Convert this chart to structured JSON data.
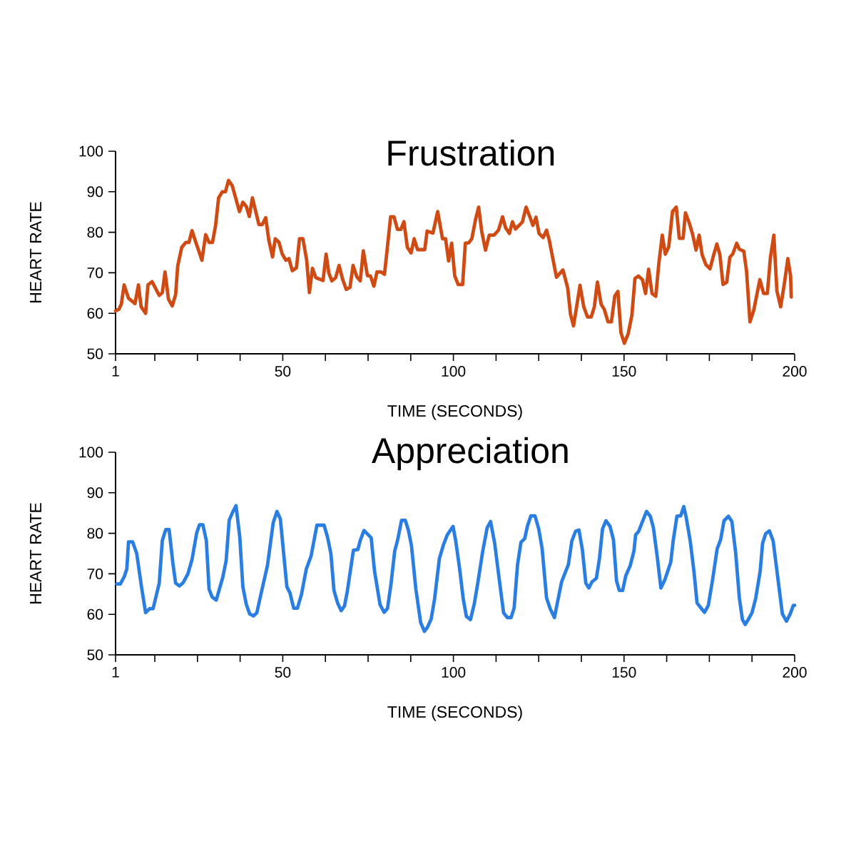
{
  "chart_data": [
    {
      "type": "line",
      "title": "Frustration",
      "xlabel": "TIME (SECONDS)",
      "ylabel": "HEART RATE",
      "color": "#d04a14",
      "xlim": [
        1,
        200
      ],
      "ylim": [
        50,
        100
      ],
      "xticks": [
        1,
        {
          "value": 12.5,
          "label": null
        },
        {
          "value": 25,
          "label": null
        },
        {
          "value": 37.5,
          "label": null
        },
        50,
        {
          "value": 62.5,
          "label": null
        },
        {
          "value": 75,
          "label": null
        },
        {
          "value": 87.5,
          "label": null
        },
        100,
        {
          "value": 112.5,
          "label": null
        },
        {
          "value": 125,
          "label": null
        },
        {
          "value": 137.5,
          "label": null
        },
        150,
        {
          "value": 162.5,
          "label": null
        },
        {
          "value": 175,
          "label": null
        },
        {
          "value": 187.5,
          "label": null
        },
        200
      ],
      "yticks": [
        50,
        60,
        70,
        80,
        90,
        100
      ],
      "x": [
        1,
        2,
        2.7,
        3.5,
        4.8,
        6.7,
        7.7,
        8.5,
        9.8,
        10.5,
        11.7,
        13.8,
        14.7,
        15.5,
        16.5,
        17.6,
        18.6,
        19.2,
        20.4,
        21.6,
        22.5,
        23.4,
        24.3,
        26.3,
        27.4,
        28.4,
        29.4,
        30.3,
        31.2,
        32.3,
        33.2,
        34.1,
        35.2,
        37.3,
        38.3,
        39.3,
        40.2,
        41.1,
        43,
        44,
        45,
        45.9,
        47,
        47.8,
        48.9,
        49.8,
        50.9,
        51.8,
        52.8,
        54,
        54.9,
        55.9,
        57,
        57.8,
        58.7,
        59.7,
        61.8,
        62.7,
        63.5,
        64.4,
        65.5,
        66.5,
        67.5,
        68.6,
        69.7,
        70.6,
        71.7,
        72.7,
        73.6,
        74.8,
        75.7,
        76.7,
        77.6,
        78.8,
        79.8,
        80.5,
        81.6,
        82.6,
        83.6,
        84.6,
        85.5,
        86.5,
        87.6,
        88.5,
        89.5,
        91.6,
        92.3,
        94,
        95.4,
        96.8,
        97.7,
        98.6,
        99.5,
        100.4,
        101.4,
        102.7,
        103.5,
        104.5,
        105.4,
        106.5,
        107.4,
        108.3,
        109.4,
        110.5,
        111.9,
        113.2,
        114.4,
        115.3,
        116.4,
        117.3,
        118.2,
        120.2,
        121.3,
        122.4,
        123.3,
        124.2,
        125.1,
        126.3,
        127.3,
        128.1,
        130.2,
        132.1,
        133.5,
        134.3,
        135.2,
        136.1,
        137.1,
        138.2,
        139.3,
        140.4,
        141.3,
        142.2,
        143.3,
        144.2,
        145.3,
        146.3,
        147.3,
        148.2,
        149.1,
        150.1,
        151.2,
        152.3,
        153.2,
        154.2,
        155.4,
        156.3,
        157.2,
        158.2,
        159.3,
        160.2,
        161.2,
        162.1,
        163.1,
        164.2,
        165.3,
        166.2,
        167.3,
        168,
        169.1,
        170.1,
        171.1,
        172,
        172.9,
        174,
        175.2,
        176.2,
        177.2,
        178.1,
        179,
        180.1,
        181,
        181.9,
        183,
        183.8,
        185.1,
        185.9,
        186.9,
        188,
        189.8,
        190.9,
        192,
        192.9,
        193.9,
        194.8,
        195.9,
        197,
        198,
        198.8,
        199
      ],
      "values": [
        60.6,
        61,
        62.3,
        67,
        63.7,
        62.4,
        67,
        61.6,
        60,
        67,
        67.8,
        64.4,
        65.1,
        70.2,
        63.5,
        61.8,
        64.6,
        71.6,
        76.3,
        77.5,
        77.5,
        80.4,
        78.1,
        73.1,
        79.4,
        77.5,
        77.5,
        81.6,
        88.5,
        90,
        90,
        92.8,
        91.5,
        85.1,
        87.4,
        86.4,
        83.9,
        88.5,
        81.9,
        81.9,
        83.6,
        78.1,
        73.9,
        78.4,
        77.5,
        74.7,
        73.1,
        73.5,
        70.5,
        71.2,
        78.4,
        78.4,
        73.1,
        65.1,
        71.1,
        68.8,
        68.1,
        74.6,
        69.9,
        68,
        68.8,
        71.8,
        68.5,
        65.9,
        66.4,
        71.8,
        69,
        68,
        75.4,
        69.3,
        69.2,
        66.7,
        70.2,
        70.2,
        69.6,
        75.1,
        83.8,
        83.8,
        80.7,
        80.7,
        82.6,
        76.3,
        74.9,
        78.4,
        75.7,
        75.7,
        80.3,
        79.8,
        85.1,
        78.4,
        78.4,
        72.9,
        77.3,
        69.2,
        67.1,
        67.1,
        77.3,
        77.4,
        78.4,
        83.2,
        86.2,
        80.2,
        75.6,
        79.3,
        79.3,
        80.5,
        83.8,
        81.1,
        79.7,
        82.6,
        80.8,
        82.5,
        86.2,
        83.8,
        81.7,
        83.7,
        79.7,
        78.7,
        80.5,
        78,
        68.9,
        70.7,
        66.2,
        59.8,
        56.9,
        61.6,
        66.9,
        61.6,
        59.1,
        59.1,
        61.6,
        67.7,
        62.2,
        61,
        57.9,
        57.9,
        64.3,
        65.4,
        55.2,
        52.6,
        54.9,
        59.5,
        68.6,
        69.2,
        68.3,
        64.9,
        70.9,
        64.9,
        64.2,
        72.3,
        79.3,
        74.6,
        76.4,
        85.1,
        86.2,
        78.5,
        78.5,
        84.8,
        82.3,
        79.5,
        75.6,
        79.3,
        74.4,
        72,
        71,
        74.2,
        77.1,
        74.4,
        67.1,
        67.7,
        73.8,
        74.7,
        77.3,
        75.8,
        75.3,
        70.4,
        57.9,
        60.7,
        68.3,
        64.9,
        64.9,
        73.8,
        79.3,
        65.5,
        61.6,
        67.4,
        73.5,
        69.2,
        64
      ]
    },
    {
      "type": "line",
      "title": "Appreciation",
      "xlabel": "TIME (SECONDS)",
      "ylabel": "HEART RATE",
      "color": "#2a7ee2",
      "xlim": [
        1,
        200
      ],
      "ylim": [
        50,
        100
      ],
      "xticks": [
        1,
        {
          "value": 12.5,
          "label": null
        },
        {
          "value": 25,
          "label": null
        },
        {
          "value": 37.5,
          "label": null
        },
        50,
        {
          "value": 62.5,
          "label": null
        },
        {
          "value": 75,
          "label": null
        },
        {
          "value": 87.5,
          "label": null
        },
        100,
        {
          "value": 112.5,
          "label": null
        },
        {
          "value": 125,
          "label": null
        },
        {
          "value": 137.5,
          "label": null
        },
        150,
        {
          "value": 162.5,
          "label": null
        },
        {
          "value": 175,
          "label": null
        },
        {
          "value": 187.5,
          "label": null
        },
        200
      ],
      "yticks": [
        50,
        60,
        70,
        80,
        90,
        100
      ],
      "x": [
        1.3,
        2.4,
        3.6,
        4.3,
        4.8,
        6,
        7.2,
        8.6,
        9.8,
        11,
        12,
        13.8,
        14.7,
        15.7,
        16.7,
        17.8,
        18.6,
        19.7,
        20.8,
        22.2,
        23.4,
        24.8,
        25.6,
        26.6,
        27.6,
        28.4,
        29.3,
        30.5,
        32.4,
        33.4,
        34.3,
        35.3,
        36.3,
        37.4,
        38.3,
        39.3,
        40.3,
        41.4,
        42.4,
        43.4,
        45.5,
        47.2,
        48.3,
        49.3,
        50,
        51.2,
        52.1,
        53.2,
        54.3,
        55.5,
        56.9,
        58.3,
        60,
        62.1,
        63.1,
        64.1,
        65,
        66.1,
        67.1,
        68.1,
        68.9,
        70.7,
        72,
        72.7,
        73.8,
        75.9,
        76.9,
        78.5,
        79.7,
        80.7,
        81.7,
        82.8,
        83.7,
        84.8,
        85.9,
        86.8,
        87.7,
        89,
        90.4,
        91.5,
        92.4,
        93.5,
        94.5,
        95.9,
        97.1,
        98.2,
        99.9,
        100.7,
        101.8,
        102.9,
        103.8,
        105,
        106.1,
        107.2,
        108.6,
        109.9,
        110.9,
        112.1,
        113.3,
        114.7,
        115.8,
        116.9,
        117.8,
        118.8,
        119.8,
        120.9,
        121.7,
        122.7,
        123.9,
        125,
        126,
        127.3,
        128.4,
        129.6,
        130.6,
        131.7,
        132.4,
        133.7,
        134.7,
        135.8,
        136.8,
        137.8,
        138.8,
        139.7,
        140.6,
        141.9,
        142.8,
        143.7,
        144.7,
        145.9,
        146.9,
        147.8,
        148.6,
        149.6,
        150.5,
        151.8,
        152.9,
        153.4,
        154.3,
        155.4,
        156.6,
        157.7,
        158.6,
        159.7,
        160.8,
        162,
        163.7,
        164.4,
        165.5,
        166.6,
        167.5,
        168.2,
        169.4,
        170.5,
        171.4,
        172.5,
        173.6,
        174.7,
        175.9,
        177.3,
        178.3,
        179.3,
        180.6,
        181.6,
        182.7,
        183.8,
        184.7,
        185.5,
        186.4,
        187.5,
        188.6,
        189.9,
        190.6,
        191.5,
        192.6,
        193.7,
        194.9,
        196.4,
        197.6,
        198.7,
        199.6,
        200
      ],
      "values": [
        67.5,
        67.5,
        69.4,
        71.2,
        77.9,
        77.9,
        75,
        66.8,
        60.4,
        61.4,
        61.4,
        67.7,
        78.2,
        80.9,
        80.9,
        72.6,
        67.7,
        67,
        67.8,
        70,
        73.5,
        80.2,
        82.1,
        82.1,
        78.2,
        66.2,
        64.3,
        63.5,
        69.1,
        73.2,
        83.2,
        85.2,
        86.8,
        79.1,
        66.8,
        62.5,
        60.1,
        59.6,
        60.4,
        64.2,
        72,
        82.6,
        85.4,
        83.5,
        77.3,
        66.8,
        65.3,
        61.5,
        61.5,
        65,
        71.2,
        74.4,
        82,
        82,
        79.1,
        75,
        65.9,
        62.7,
        60.9,
        62.1,
        65.6,
        75.8,
        76,
        78.2,
        80.7,
        78.9,
        70.6,
        62.4,
        60.5,
        61.5,
        67.4,
        75.6,
        78.5,
        83.2,
        83.2,
        80.8,
        77,
        66.2,
        58,
        55.8,
        56.8,
        58.9,
        63.9,
        73.8,
        77.2,
        79.6,
        81.7,
        78,
        71.4,
        63.7,
        59.5,
        58.7,
        62.5,
        68,
        75.6,
        81.4,
        82.9,
        77.5,
        69.5,
        60.4,
        59.2,
        59.2,
        61.6,
        72.3,
        77.8,
        78.7,
        81.8,
        84.3,
        84.3,
        81.1,
        76.2,
        64,
        61.3,
        59.2,
        63.4,
        68,
        69.5,
        72.3,
        78.1,
        80.5,
        80.8,
        75.9,
        67.7,
        66.5,
        68,
        68.9,
        73.8,
        81.1,
        83.1,
        81.7,
        78.4,
        68.3,
        65.9,
        65.9,
        69.5,
        72,
        75.6,
        79.6,
        80.5,
        82.9,
        85.4,
        84.2,
        81.4,
        74.4,
        66.5,
        68.6,
        72.9,
        78.1,
        84.2,
        84.3,
        86.6,
        84,
        78.1,
        70.5,
        62.8,
        61.6,
        60.5,
        62.2,
        68.3,
        76.2,
        78.4,
        83.1,
        84.2,
        82.9,
        75.3,
        64,
        58.7,
        57.5,
        58.7,
        60.4,
        64,
        70.7,
        77.5,
        79.9,
        80.6,
        78.1,
        70.1,
        60.1,
        58.3,
        60.1,
        62.2,
        62.2
      ]
    }
  ]
}
